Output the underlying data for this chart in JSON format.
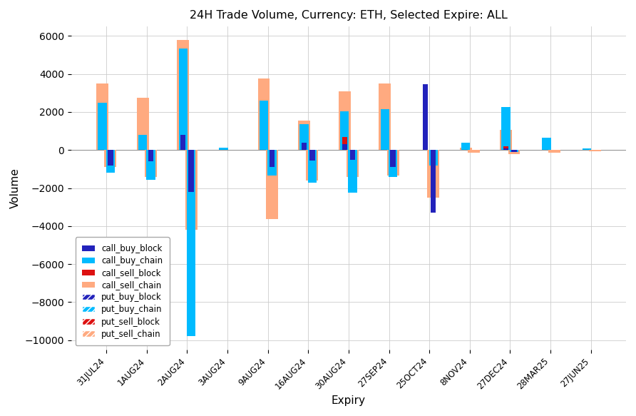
{
  "title": "24H Trade Volume, Currency: ETH, Selected Expire: ALL",
  "xlabel": "Expiry",
  "ylabel": "Volume",
  "categories": [
    "31JUL24",
    "1AUG24",
    "2AUG24",
    "3AUG24",
    "9AUG24",
    "16AUG24",
    "30AUG24",
    "27SEP24",
    "25OCT24",
    "8NOV24",
    "27DEC24",
    "28MAR25",
    "27JUN25"
  ],
  "call_buy_block": [
    0,
    0,
    800,
    0,
    0,
    400,
    300,
    0,
    3450,
    0,
    100,
    0,
    0
  ],
  "call_buy_chain": [
    2500,
    800,
    5350,
    130,
    2600,
    1350,
    2050,
    2150,
    0,
    400,
    2250,
    650,
    100
  ],
  "call_sell_block": [
    0,
    0,
    800,
    0,
    0,
    250,
    700,
    0,
    2550,
    0,
    200,
    0,
    0
  ],
  "call_sell_chain": [
    3500,
    2750,
    5800,
    0,
    3750,
    1550,
    3100,
    3500,
    0,
    130,
    1050,
    0,
    0
  ],
  "put_buy_block": [
    -800,
    -600,
    -2200,
    0,
    -900,
    -550,
    -500,
    -900,
    -3300,
    0,
    -100,
    0,
    0
  ],
  "put_buy_chain": [
    -1200,
    -1550,
    -9800,
    0,
    -1350,
    -1700,
    -2250,
    -1400,
    -800,
    0,
    -100,
    0,
    0
  ],
  "put_sell_block": [
    -800,
    -600,
    -2200,
    0,
    -900,
    -550,
    -500,
    -900,
    -3300,
    0,
    -100,
    0,
    0
  ],
  "put_sell_chain": [
    -900,
    -1400,
    -4200,
    0,
    -3650,
    -1600,
    -1400,
    -1350,
    -2500,
    -150,
    -200,
    -130,
    -80
  ],
  "colors": {
    "call_buy_block": "#2222bb",
    "call_buy_chain": "#00bbff",
    "call_sell_block": "#dd1111",
    "call_sell_chain": "#ffaa80",
    "put_buy_block": "#2222bb",
    "put_buy_chain": "#00bbff",
    "put_sell_block": "#dd1111",
    "put_sell_chain": "#ffaa80"
  },
  "ylim": [
    -10500,
    6500
  ],
  "background_color": "#ffffff",
  "grid_color": "#cccccc"
}
